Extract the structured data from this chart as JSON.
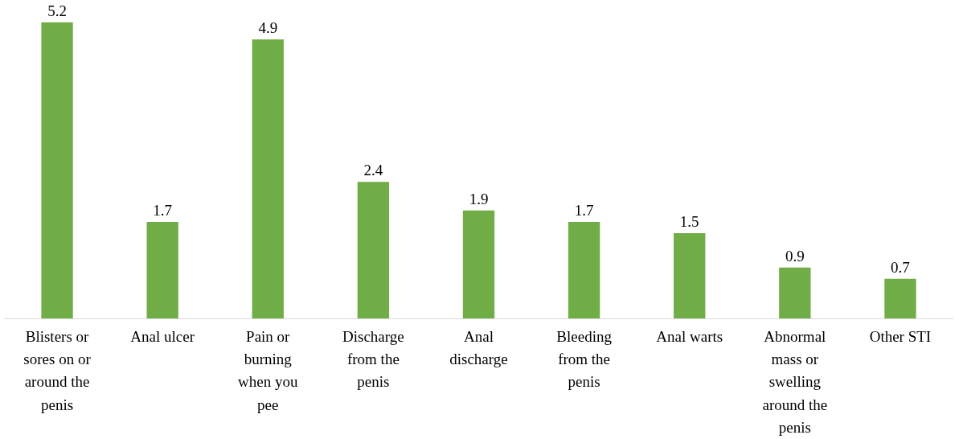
{
  "chart_data": {
    "type": "bar",
    "categories": [
      "Blisters or sores on or around the penis",
      "Anal ulcer",
      "Pain or burning when you pee",
      "Discharge from the penis",
      "Anal discharge",
      "Bleeding from the penis",
      "Anal warts",
      "Abnormal mass or swelling around the penis",
      "Other STI"
    ],
    "values": [
      5.2,
      1.7,
      4.9,
      2.4,
      1.9,
      1.7,
      1.5,
      0.9,
      0.7
    ],
    "color": "#70ad47",
    "data_labels": true
  }
}
